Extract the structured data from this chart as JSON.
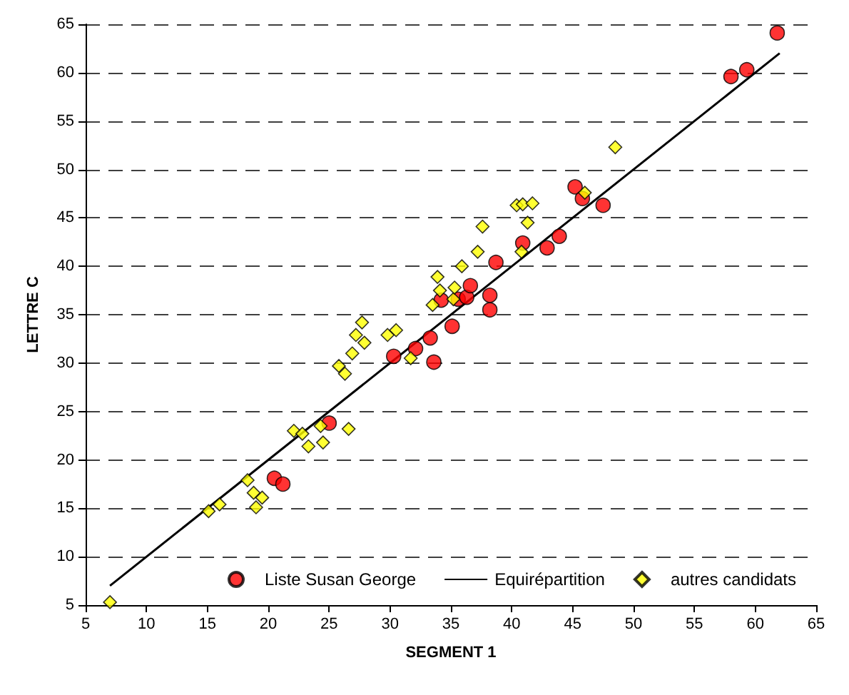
{
  "chart_data": {
    "type": "scatter",
    "xlabel": "SEGMENT 1",
    "ylabel": "LETTRE C",
    "xlim": [
      5,
      65
    ],
    "ylim": [
      5,
      65
    ],
    "xticks": [
      5,
      10,
      15,
      20,
      25,
      30,
      35,
      40,
      45,
      50,
      55,
      60,
      65
    ],
    "yticks": [
      5,
      10,
      15,
      20,
      25,
      30,
      35,
      40,
      45,
      50,
      55,
      60,
      65
    ],
    "grid": "y",
    "legend": "bottom right",
    "series": [
      {
        "name": "Liste Susan George",
        "marker": "circle",
        "color": "#ff0000",
        "x": [
          20.5,
          21.2,
          25,
          30.3,
          32.1,
          33.3,
          33.6,
          34.2,
          35.1,
          35.6,
          36.3,
          36.6,
          38.2,
          38.2,
          38.7,
          40.9,
          42.9,
          43.9,
          45.2,
          45.8,
          47.5,
          58,
          59.3,
          61.8
        ],
        "values": [
          18.1,
          17.5,
          23.8,
          30.7,
          31.5,
          32.6,
          30.1,
          36.5,
          33.8,
          36.6,
          36.8,
          38,
          35.5,
          37,
          40.4,
          42.4,
          41.9,
          43.1,
          48.2,
          47,
          46.3,
          59.6,
          60.3,
          64.1
        ]
      },
      {
        "name": "Equirépartition",
        "type": "line",
        "marker": "none",
        "line_style": "solid",
        "color": "#000000",
        "x": [
          7,
          62
        ],
        "values": [
          7,
          62
        ]
      },
      {
        "name": "autres candidats",
        "marker": "diamond",
        "color": "#ffff00",
        "x": [
          7,
          15.1,
          16,
          18.3,
          18.8,
          19,
          19.5,
          22.1,
          22.8,
          23.3,
          24.3,
          24.5,
          26.6,
          25.8,
          26.3,
          26.9,
          27.2,
          27.7,
          27.9,
          29.8,
          30.5,
          31.7,
          33.5,
          33.9,
          34.1,
          35.2,
          35.3,
          35.9,
          37.2,
          37.6,
          40.4,
          40.9,
          41.3,
          41.7,
          40.8,
          48.5,
          46
        ],
        "values": [
          5.3,
          14.7,
          15.4,
          17.9,
          16.6,
          15.1,
          16.1,
          23,
          22.7,
          21.4,
          23.5,
          21.8,
          23.2,
          29.7,
          28.9,
          31,
          32.9,
          34.2,
          32.1,
          32.9,
          33.4,
          30.5,
          36,
          38.9,
          37.5,
          36.6,
          37.8,
          40,
          41.5,
          44.1,
          46.3,
          46.4,
          44.5,
          46.5,
          41.5,
          52.3,
          47.6
        ]
      }
    ]
  }
}
